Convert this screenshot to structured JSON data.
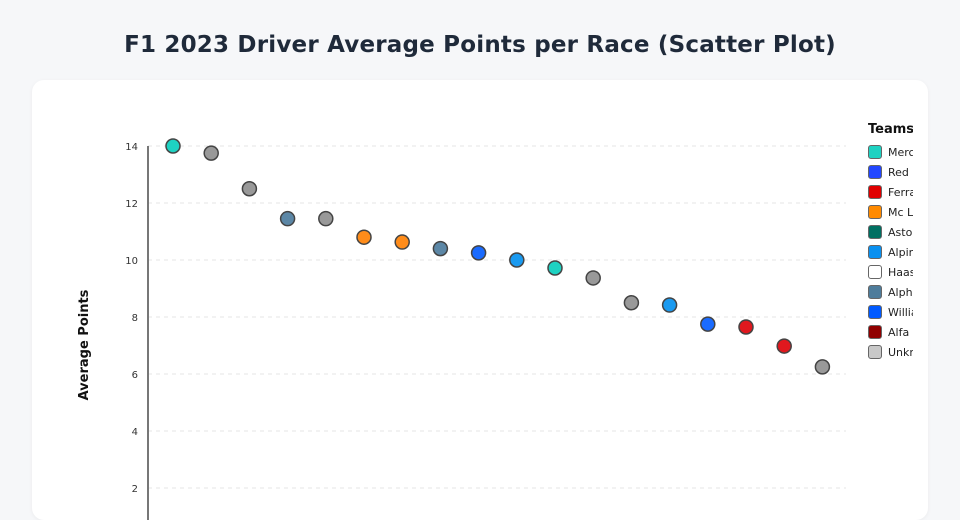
{
  "title": "F1 2023 Driver Average Points per Race (Scatter Plot)",
  "chart_data": {
    "type": "scatter",
    "title": "F1 2023 Driver Average Points per Race (Scatter Plot)",
    "xlabel": "",
    "ylabel": "Average Points",
    "yticks": [
      2,
      4,
      6,
      8,
      10,
      12,
      14
    ],
    "ylim": [
      0,
      14
    ],
    "grid": true,
    "legend_title": "Teams",
    "legend_placement": "right",
    "legend": [
      {
        "label": "Mercedes",
        "color": "#1ed2c2"
      },
      {
        "label": "Red Bull",
        "color": "#2247ff"
      },
      {
        "label": "Ferrari",
        "color": "#e00000"
      },
      {
        "label": "Mc Laren",
        "color": "#ff8a00"
      },
      {
        "label": "Aston Martin",
        "color": "#006f62"
      },
      {
        "label": "Alpine",
        "color": "#0a90f0"
      },
      {
        "label": "Haas",
        "color": "#ffffff"
      },
      {
        "label": "AlphaTauri",
        "color": "#4e7c9b"
      },
      {
        "label": "Williams",
        "color": "#005aff"
      },
      {
        "label": "Alfa Romeo",
        "color": "#900000"
      },
      {
        "label": "Unknown",
        "color": "#c8c8c8"
      }
    ],
    "points": [
      {
        "index": 1,
        "y": 14.0,
        "team": "Mercedes",
        "color": "#1ed2c2"
      },
      {
        "index": 2,
        "y": 13.75,
        "team": "Unknown",
        "color": "#999999"
      },
      {
        "index": 3,
        "y": 12.5,
        "team": "Unknown",
        "color": "#999999"
      },
      {
        "index": 4,
        "y": 11.45,
        "team": "AlphaTauri",
        "color": "#5c87a6"
      },
      {
        "index": 5,
        "y": 11.45,
        "team": "Unknown",
        "color": "#999999"
      },
      {
        "index": 6,
        "y": 10.8,
        "team": "Mc Laren",
        "color": "#ff8c1a"
      },
      {
        "index": 7,
        "y": 10.63,
        "team": "Mc Laren",
        "color": "#ff8c1a"
      },
      {
        "index": 8,
        "y": 10.4,
        "team": "AlphaTauri",
        "color": "#5c87a6"
      },
      {
        "index": 9,
        "y": 10.25,
        "team": "Williams",
        "color": "#1a6bff"
      },
      {
        "index": 10,
        "y": 10.0,
        "team": "Alpine",
        "color": "#1a9af0"
      },
      {
        "index": 11,
        "y": 9.72,
        "team": "Mercedes",
        "color": "#1ed2c2"
      },
      {
        "index": 12,
        "y": 9.37,
        "team": "Unknown",
        "color": "#999999"
      },
      {
        "index": 13,
        "y": 8.5,
        "team": "Unknown",
        "color": "#999999"
      },
      {
        "index": 14,
        "y": 8.42,
        "team": "Alpine",
        "color": "#1a9af0"
      },
      {
        "index": 15,
        "y": 7.75,
        "team": "Williams",
        "color": "#1a6bff"
      },
      {
        "index": 16,
        "y": 7.65,
        "team": "Ferrari",
        "color": "#e0181e"
      },
      {
        "index": 17,
        "y": 6.98,
        "team": "Ferrari",
        "color": "#e0181e"
      },
      {
        "index": 18,
        "y": 6.25,
        "team": "Unknown",
        "color": "#999999"
      }
    ]
  }
}
